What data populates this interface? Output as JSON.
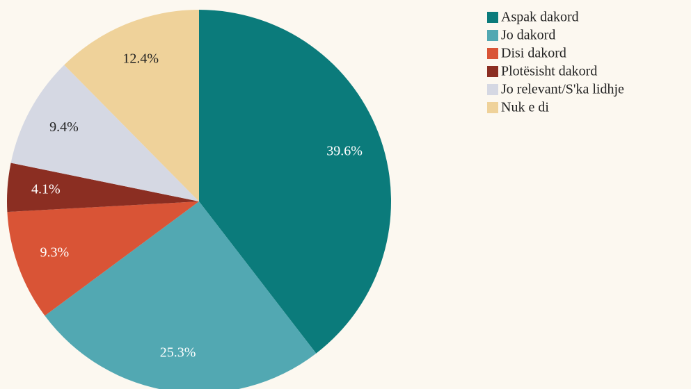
{
  "chart_data": {
    "type": "pie",
    "categories": [
      "Aspak dakord",
      "Jo dakord",
      "Disi dakord",
      "Plotësisht dakord",
      "Jo relevant/S'ka lidhje",
      "Nuk e di"
    ],
    "values": [
      39.6,
      25.3,
      9.3,
      4.1,
      9.4,
      12.4
    ],
    "value_labels": [
      "39.6%",
      "25.3%",
      "9.3%",
      "4.1%",
      "9.4%",
      "12.4%"
    ],
    "colors": [
      "#0b7b7b",
      "#52a8b2",
      "#d95436",
      "#8b2e22",
      "#d5d8e3",
      "#efd29a"
    ],
    "legend": "top-right"
  }
}
